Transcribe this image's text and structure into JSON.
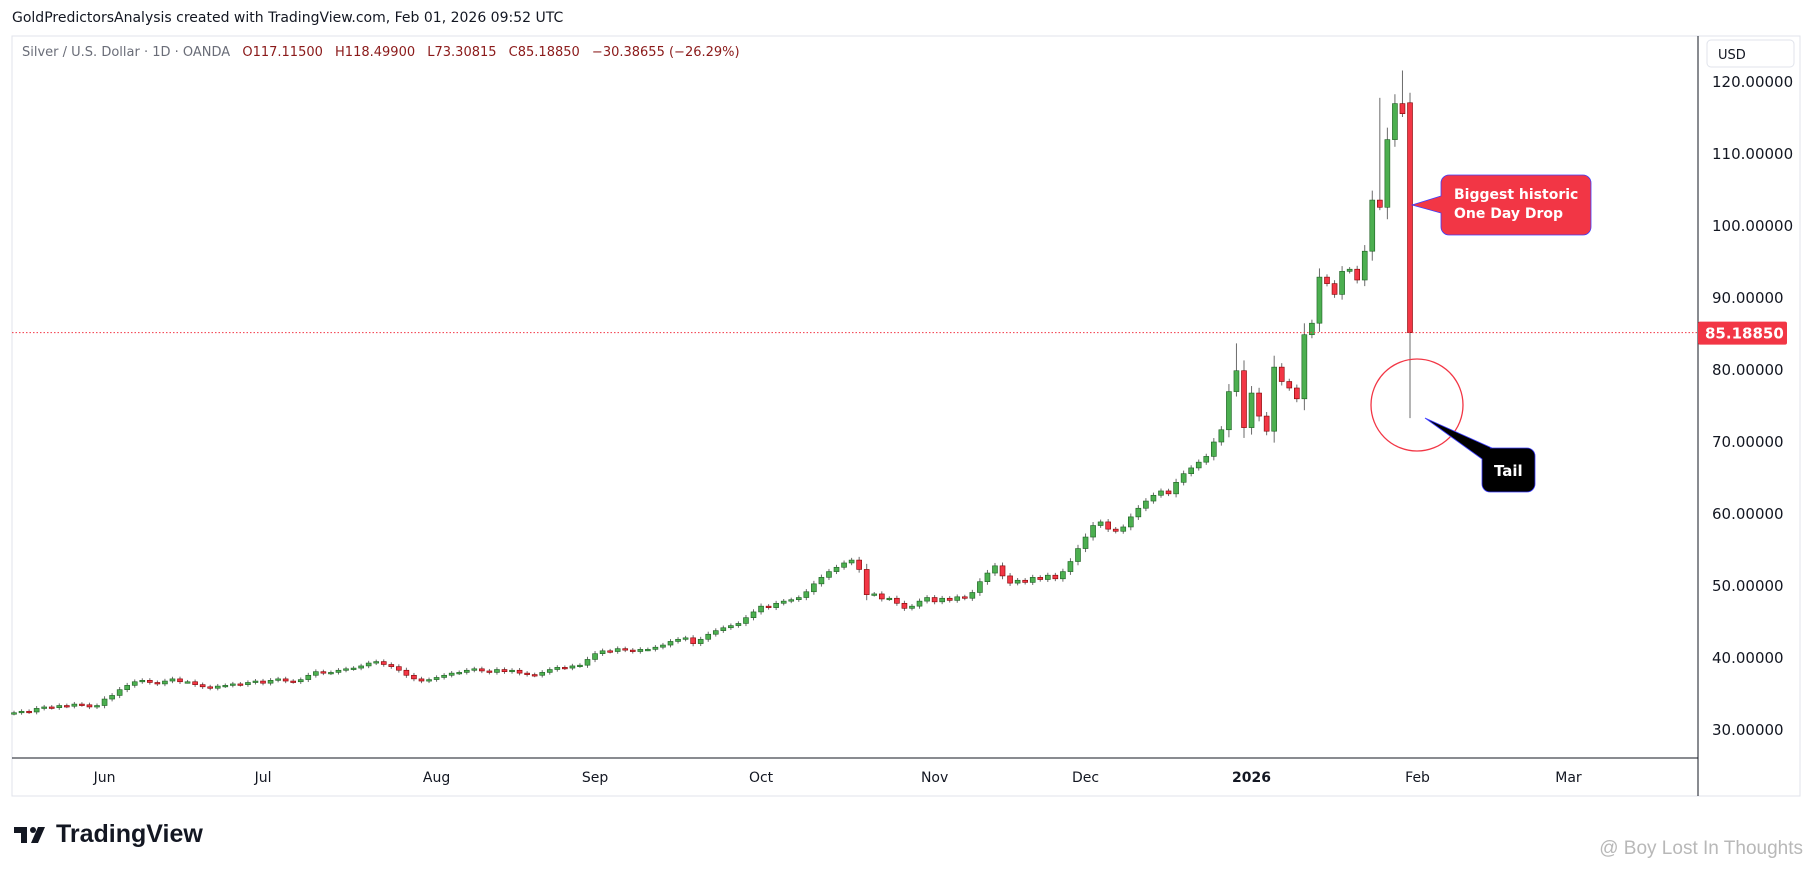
{
  "header": {
    "text": "GoldPredictorsAnalysis created with TradingView.com, Feb 01, 2026 09:52 UTC"
  },
  "legend": {
    "symbol": "Silver / U.S. Dollar · 1D · OANDA",
    "open": "O117.11500",
    "high": "H118.49900",
    "low": "L73.30815",
    "close": "C85.18850",
    "change": "−30.38655 (−26.29%)"
  },
  "price_axis": {
    "currency": "USD",
    "last_price_label": "85.18850"
  },
  "footer": {
    "logo_text": "TradingView",
    "watermark": "@ Boy Lost In Thoughts"
  },
  "colors": {
    "up": "#4caf50",
    "down": "#f23645",
    "callout_red": "#f23645",
    "callout_black": "#000000",
    "last_price": "#f23645"
  },
  "chart_data": {
    "type": "candlestick",
    "title": "Silver / U.S. Dollar · 1D · OANDA",
    "ylim": [
      25,
      125
    ],
    "y_ticks": [
      30,
      40,
      50,
      60,
      70,
      80,
      90,
      100,
      110,
      120
    ],
    "y_tick_labels": [
      "30.00000",
      "40.00000",
      "50.00000",
      "60.00000",
      "70.00000",
      "80.00000",
      "90.00000",
      "100.00000",
      "110.00000",
      "120.00000"
    ],
    "x_ticks": [
      {
        "label": "Jun",
        "bar": 12
      },
      {
        "label": "Jul",
        "bar": 33
      },
      {
        "label": "Aug",
        "bar": 56
      },
      {
        "label": "Sep",
        "bar": 77
      },
      {
        "label": "Oct",
        "bar": 99
      },
      {
        "label": "Nov",
        "bar": 122
      },
      {
        "label": "Dec",
        "bar": 142
      },
      {
        "label": "2026",
        "bar": 164
      },
      {
        "label": "Feb",
        "bar": 186
      },
      {
        "label": "Mar",
        "bar": 206
      }
    ],
    "first_open": 32.3,
    "closes": [
      32.4,
      32.6,
      32.5,
      33.0,
      33.2,
      33.1,
      33.4,
      33.3,
      33.6,
      33.5,
      33.2,
      33.4,
      34.3,
      34.8,
      35.6,
      36.2,
      36.7,
      36.9,
      36.6,
      36.4,
      36.8,
      37.1,
      36.7,
      36.7,
      36.3,
      36.0,
      35.8,
      36.1,
      36.2,
      36.4,
      36.3,
      36.6,
      36.8,
      36.5,
      36.9,
      37.1,
      36.8,
      36.7,
      37.0,
      37.6,
      38.1,
      37.9,
      38.0,
      38.3,
      38.5,
      38.6,
      38.9,
      39.3,
      39.5,
      39.1,
      38.8,
      38.3,
      37.6,
      37.1,
      36.8,
      37.0,
      37.3,
      37.6,
      37.9,
      38.0,
      38.3,
      38.5,
      38.2,
      38.0,
      38.4,
      38.1,
      38.3,
      37.9,
      37.7,
      37.6,
      38.0,
      38.4,
      38.7,
      38.6,
      38.9,
      39.0,
      39.8,
      40.6,
      41.0,
      40.9,
      41.3,
      41.1,
      40.9,
      41.2,
      41.2,
      41.5,
      41.8,
      42.3,
      42.6,
      42.8,
      42.0,
      42.6,
      43.3,
      43.8,
      44.2,
      44.5,
      44.8,
      45.6,
      46.4,
      47.2,
      47.0,
      47.6,
      47.9,
      48.1,
      48.4,
      49.2,
      50.3,
      51.2,
      52.0,
      52.6,
      53.2,
      53.6,
      52.3,
      48.8,
      48.9,
      48.2,
      48.3,
      47.6,
      46.9,
      47.2,
      47.9,
      48.4,
      47.8,
      48.3,
      48.0,
      48.5,
      48.3,
      49.1,
      50.6,
      51.8,
      52.8,
      51.4,
      50.4,
      50.8,
      50.5,
      51.2,
      50.9,
      51.5,
      51.0,
      52.0,
      53.4,
      55.2,
      56.8,
      58.4,
      58.9,
      57.9,
      57.6,
      58.2,
      59.6,
      60.8,
      61.8,
      62.6,
      63.2,
      62.8,
      64.4,
      65.6,
      66.4,
      67.2,
      68.0,
      70.0,
      71.7,
      77.0,
      79.9,
      72.0,
      76.8,
      73.6,
      71.5,
      80.4,
      78.4,
      77.5,
      76.0,
      84.9,
      86.5,
      92.9,
      92.0,
      90.5,
      93.7,
      94.0,
      92.5,
      96.5,
      103.6,
      102.6,
      112.0,
      117.0,
      115.6
    ],
    "notable_highs": {
      "162": 83.7,
      "181": 117.8,
      "183": 118.3,
      "184": 121.6
    },
    "last_bar": {
      "open": 117.115,
      "high": 118.499,
      "low": 73.30815,
      "close": 85.1885
    },
    "last_price": 85.1885,
    "annotations": [
      {
        "text": [
          "Biggest historic",
          "One Day Drop"
        ],
        "style": "red-callout",
        "target": "last_bar_body"
      },
      {
        "text": [
          "Tail"
        ],
        "style": "black-callout",
        "target": "last_bar_lower_wick"
      }
    ]
  }
}
